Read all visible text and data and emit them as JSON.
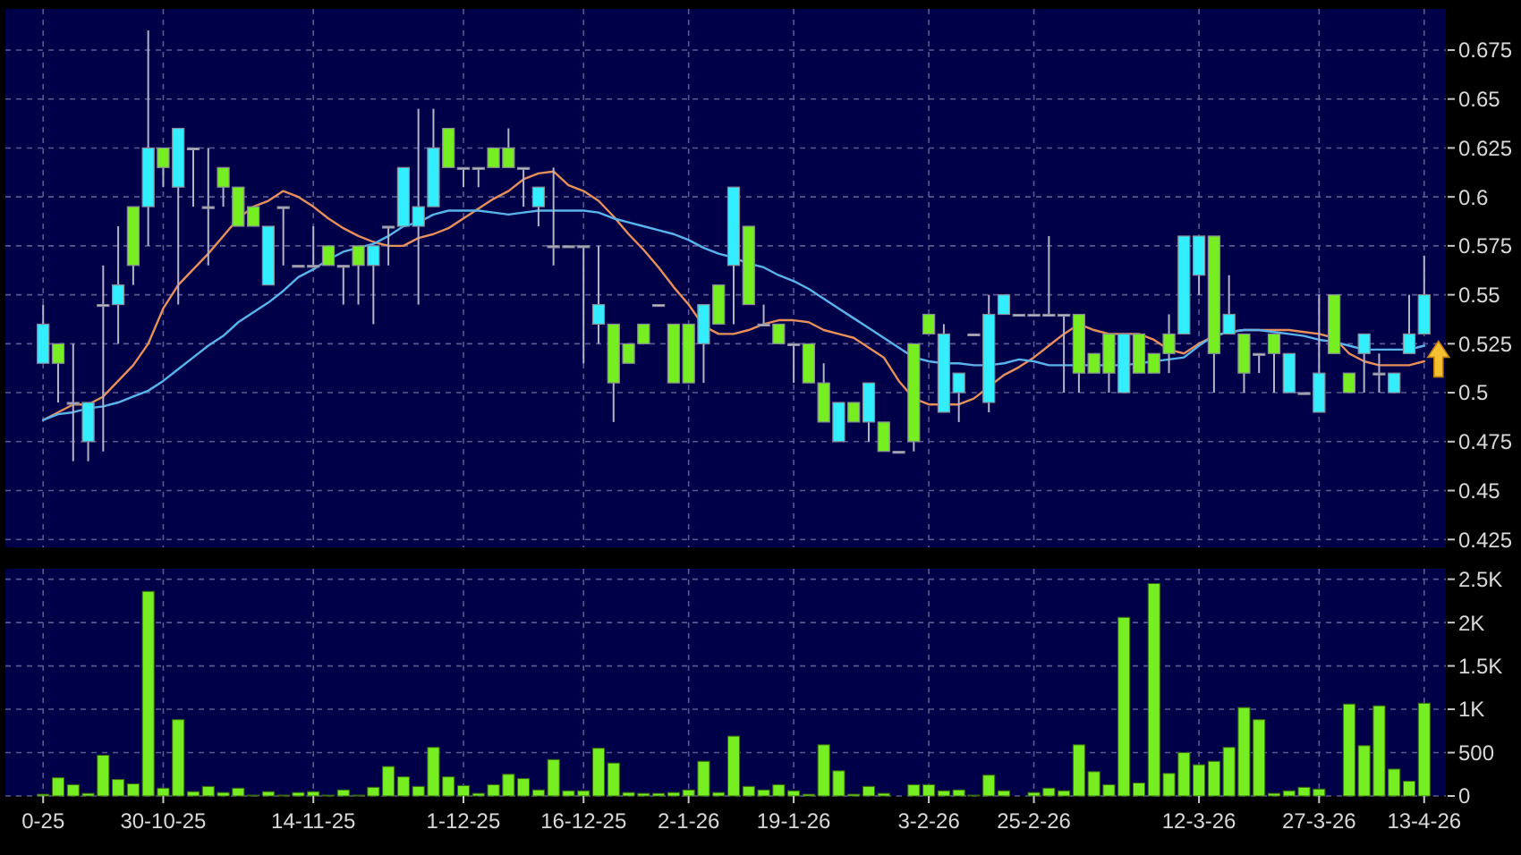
{
  "chart_data": [
    {
      "type": "candlestick",
      "tick_labels": "y",
      "grid": true,
      "ylim": [
        0.421,
        0.696
      ],
      "yticks": [
        0.425,
        0.45,
        0.475,
        0.5,
        0.525,
        0.55,
        0.575,
        0.6,
        0.625,
        0.65,
        0.675
      ],
      "categories": [
        null,
        null,
        null,
        null,
        null,
        null,
        null,
        null,
        null,
        null,
        null,
        null,
        null,
        null,
        null,
        null,
        null,
        null,
        null,
        null,
        null,
        null,
        null,
        null,
        null,
        null,
        null,
        null,
        null,
        null,
        null,
        null,
        null,
        null,
        null,
        null,
        null,
        null,
        null,
        null,
        null,
        null,
        null,
        null,
        null,
        null,
        null,
        null,
        null,
        null,
        null,
        null,
        null,
        null,
        null,
        null,
        null,
        null,
        null,
        null,
        null,
        null,
        null,
        null,
        null,
        null,
        null,
        null,
        null,
        null,
        null,
        null,
        null,
        null,
        null,
        null,
        null,
        null,
        null,
        null,
        null,
        null,
        null,
        null,
        null,
        null,
        null,
        null,
        null,
        null,
        null,
        null,
        null
      ],
      "ohlc": [
        [
          0.515,
          0.545,
          0.515,
          0.535
        ],
        [
          0.525,
          0.525,
          0.495,
          0.515
        ],
        [
          0.495,
          0.525,
          0.465,
          0.495
        ],
        [
          0.475,
          0.495,
          0.465,
          0.495
        ],
        [
          0.545,
          0.565,
          0.47,
          0.545
        ],
        [
          0.545,
          0.585,
          0.525,
          0.555
        ],
        [
          0.595,
          0.595,
          0.555,
          0.565
        ],
        [
          0.595,
          0.685,
          0.575,
          0.625
        ],
        [
          0.625,
          0.625,
          0.605,
          0.615
        ],
        [
          0.605,
          0.635,
          0.545,
          0.635
        ],
        [
          0.625,
          0.625,
          0.595,
          0.625
        ],
        [
          0.595,
          0.625,
          0.565,
          0.595
        ],
        [
          0.615,
          0.615,
          0.595,
          0.605
        ],
        [
          0.605,
          0.605,
          0.585,
          0.585
        ],
        [
          0.595,
          0.595,
          0.585,
          0.585
        ],
        [
          0.555,
          0.585,
          0.555,
          0.585
        ],
        [
          0.595,
          0.595,
          0.565,
          0.595
        ],
        [
          0.565,
          0.565,
          0.565,
          0.565
        ],
        [
          0.565,
          0.585,
          0.565,
          0.565
        ],
        [
          0.575,
          0.575,
          0.565,
          0.565
        ],
        [
          0.565,
          0.565,
          0.545,
          0.565
        ],
        [
          0.575,
          0.575,
          0.545,
          0.565
        ],
        [
          0.565,
          0.575,
          0.535,
          0.575
        ],
        [
          0.585,
          0.585,
          0.565,
          0.585
        ],
        [
          0.585,
          0.615,
          0.585,
          0.615
        ],
        [
          0.585,
          0.645,
          0.545,
          0.595
        ],
        [
          0.595,
          0.645,
          0.595,
          0.625
        ],
        [
          0.635,
          0.635,
          0.615,
          0.615
        ],
        [
          0.615,
          0.615,
          0.605,
          0.615
        ],
        [
          0.615,
          0.615,
          0.605,
          0.615
        ],
        [
          0.625,
          0.625,
          0.615,
          0.615
        ],
        [
          0.625,
          0.635,
          0.615,
          0.615
        ],
        [
          0.615,
          0.615,
          0.595,
          0.615
        ],
        [
          0.595,
          0.605,
          0.585,
          0.605
        ],
        [
          0.575,
          0.615,
          0.565,
          0.575
        ],
        [
          0.575,
          0.575,
          0.575,
          0.575
        ],
        [
          0.575,
          0.575,
          0.515,
          0.575
        ],
        [
          0.535,
          0.575,
          0.525,
          0.545
        ],
        [
          0.535,
          0.535,
          0.485,
          0.505
        ],
        [
          0.525,
          0.525,
          0.515,
          0.515
        ],
        [
          0.535,
          0.535,
          0.525,
          0.525
        ],
        [
          0.545,
          0.545,
          0.545,
          0.545
        ],
        [
          0.535,
          0.535,
          0.505,
          0.505
        ],
        [
          0.535,
          0.535,
          0.505,
          0.505
        ],
        [
          0.525,
          0.545,
          0.505,
          0.545
        ],
        [
          0.555,
          0.555,
          0.535,
          0.535
        ],
        [
          0.565,
          0.605,
          0.535,
          0.605
        ],
        [
          0.585,
          0.585,
          0.545,
          0.545
        ],
        [
          0.535,
          0.545,
          0.535,
          0.535
        ],
        [
          0.535,
          0.535,
          0.525,
          0.525
        ],
        [
          0.525,
          0.525,
          0.505,
          0.525
        ],
        [
          0.525,
          0.525,
          0.505,
          0.505
        ],
        [
          0.505,
          0.515,
          0.485,
          0.485
        ],
        [
          0.475,
          0.495,
          0.475,
          0.495
        ],
        [
          0.495,
          0.495,
          0.485,
          0.485
        ],
        [
          0.485,
          0.505,
          0.475,
          0.505
        ],
        [
          0.485,
          0.485,
          0.47,
          0.47
        ],
        [
          0.47,
          0.47,
          0.47,
          0.47
        ],
        [
          0.525,
          0.525,
          0.47,
          0.475
        ],
        [
          0.54,
          0.54,
          0.53,
          0.53
        ],
        [
          0.49,
          0.535,
          0.49,
          0.53
        ],
        [
          0.5,
          0.51,
          0.485,
          0.51
        ],
        [
          0.53,
          0.53,
          0.53,
          0.53
        ],
        [
          0.495,
          0.55,
          0.49,
          0.54
        ],
        [
          0.54,
          0.55,
          0.54,
          0.55
        ],
        [
          0.54,
          0.54,
          0.54,
          0.54
        ],
        [
          0.54,
          0.54,
          0.54,
          0.54
        ],
        [
          0.54,
          0.58,
          0.54,
          0.54
        ],
        [
          0.54,
          0.54,
          0.5,
          0.54
        ],
        [
          0.54,
          0.54,
          0.5,
          0.51
        ],
        [
          0.52,
          0.52,
          0.51,
          0.51
        ],
        [
          0.53,
          0.53,
          0.5,
          0.51
        ],
        [
          0.5,
          0.53,
          0.5,
          0.53
        ],
        [
          0.53,
          0.53,
          0.51,
          0.51
        ],
        [
          0.52,
          0.52,
          0.51,
          0.51
        ],
        [
          0.53,
          0.54,
          0.51,
          0.52
        ],
        [
          0.53,
          0.58,
          0.53,
          0.58
        ],
        [
          0.56,
          0.58,
          0.55,
          0.58
        ],
        [
          0.58,
          0.58,
          0.5,
          0.52
        ],
        [
          0.53,
          0.56,
          0.53,
          0.54
        ],
        [
          0.53,
          0.53,
          0.5,
          0.51
        ],
        [
          0.52,
          0.52,
          0.51,
          0.52
        ],
        [
          0.53,
          0.53,
          0.5,
          0.52
        ],
        [
          0.5,
          0.52,
          0.5,
          0.52
        ],
        [
          0.5,
          0.5,
          0.5,
          0.5
        ],
        [
          0.49,
          0.55,
          0.49,
          0.51
        ],
        [
          0.55,
          0.55,
          0.52,
          0.52
        ],
        [
          0.51,
          0.51,
          0.5,
          0.5
        ],
        [
          0.52,
          0.53,
          0.5,
          0.53
        ],
        [
          0.51,
          0.52,
          0.5,
          0.51
        ],
        [
          0.5,
          0.51,
          0.5,
          0.51
        ],
        [
          0.52,
          0.55,
          0.52,
          0.53
        ],
        [
          0.53,
          0.57,
          0.53,
          0.55
        ]
      ],
      "colors": [
        "#33eeff",
        "#77ee22",
        "#c8c8d8",
        "#33eeff",
        "#c8c8d8",
        "#33eeff",
        "#77ee22",
        "#33eeff",
        "#77ee22",
        "#33eeff",
        "#c8c8d8",
        "#c8c8d8",
        "#77ee22",
        "#77ee22",
        "#77ee22",
        "#33eeff",
        "#c8c8d8",
        "#c8c8d8",
        "#c8c8d8",
        "#77ee22",
        "#c8c8d8",
        "#77ee22",
        "#33eeff",
        "#c8c8d8",
        "#33eeff",
        "#33eeff",
        "#33eeff",
        "#77ee22",
        "#c8c8d8",
        "#c8c8d8",
        "#77ee22",
        "#77ee22",
        "#c8c8d8",
        "#33eeff",
        "#c8c8d8",
        "#c8c8d8",
        "#c8c8d8",
        "#33eeff",
        "#77ee22",
        "#77ee22",
        "#77ee22",
        "#c8c8d8",
        "#77ee22",
        "#77ee22",
        "#33eeff",
        "#77ee22",
        "#33eeff",
        "#77ee22",
        "#c8c8d8",
        "#77ee22",
        "#c8c8d8",
        "#77ee22",
        "#77ee22",
        "#33eeff",
        "#77ee22",
        "#33eeff",
        "#77ee22",
        "#c8c8d8",
        "#77ee22",
        "#77ee22",
        "#33eeff",
        "#33eeff",
        "#c8c8d8",
        "#33eeff",
        "#33eeff",
        "#c8c8d8",
        "#c8c8d8",
        "#c8c8d8",
        "#c8c8d8",
        "#77ee22",
        "#77ee22",
        "#77ee22",
        "#33eeff",
        "#77ee22",
        "#77ee22",
        "#77ee22",
        "#33eeff",
        "#33eeff",
        "#77ee22",
        "#33eeff",
        "#77ee22",
        "#c8c8d8",
        "#77ee22",
        "#33eeff",
        "#c8c8d8",
        "#33eeff",
        "#77ee22",
        "#77ee22",
        "#33eeff",
        "#c8c8d8",
        "#33eeff",
        "#33eeff",
        "#33eeff"
      ],
      "series": [
        {
          "type": "line",
          "color": "#e8905a",
          "values": [
            0.486,
            0.49,
            0.494,
            0.494,
            0.498,
            0.506,
            0.514,
            0.525,
            0.543,
            0.555,
            0.563,
            0.571,
            0.58,
            0.589,
            0.595,
            0.598,
            0.603,
            0.6,
            0.595,
            0.589,
            0.584,
            0.58,
            0.577,
            0.575,
            0.575,
            0.579,
            0.581,
            0.584,
            0.589,
            0.594,
            0.599,
            0.603,
            0.609,
            0.612,
            0.613,
            0.606,
            0.603,
            0.598,
            0.59,
            0.581,
            0.573,
            0.564,
            0.554,
            0.545,
            0.534,
            0.53,
            0.53,
            0.532,
            0.535,
            0.537,
            0.537,
            0.536,
            0.532,
            0.53,
            0.528,
            0.523,
            0.518,
            0.506,
            0.497,
            0.494,
            0.494,
            0.494,
            0.497,
            0.503,
            0.509,
            0.513,
            0.518,
            0.524,
            0.53,
            0.535,
            0.532,
            0.53,
            0.53,
            0.53,
            0.527,
            0.522,
            0.52,
            0.525,
            0.529,
            0.531,
            0.532,
            0.532,
            0.532,
            0.532,
            0.531,
            0.53,
            0.528,
            0.52,
            0.516,
            0.514,
            0.514,
            0.514,
            0.516
          ]
        },
        {
          "type": "line",
          "color": "#5ab4ec",
          "values": [
            0.486,
            0.489,
            0.49,
            0.492,
            0.493,
            0.495,
            0.498,
            0.501,
            0.506,
            0.512,
            0.518,
            0.524,
            0.529,
            0.536,
            0.541,
            0.546,
            0.552,
            0.559,
            0.563,
            0.568,
            0.572,
            0.574,
            0.576,
            0.58,
            0.585,
            0.587,
            0.591,
            0.593,
            0.593,
            0.593,
            0.592,
            0.591,
            0.592,
            0.593,
            0.593,
            0.593,
            0.593,
            0.592,
            0.589,
            0.587,
            0.585,
            0.583,
            0.581,
            0.578,
            0.574,
            0.571,
            0.569,
            0.566,
            0.564,
            0.56,
            0.557,
            0.553,
            0.548,
            0.543,
            0.538,
            0.533,
            0.528,
            0.523,
            0.518,
            0.516,
            0.515,
            0.515,
            0.514,
            0.514,
            0.515,
            0.517,
            0.516,
            0.514,
            0.514,
            0.514,
            0.514,
            0.514,
            0.514,
            0.515,
            0.516,
            0.517,
            0.518,
            0.524,
            0.529,
            0.531,
            0.532,
            0.532,
            0.531,
            0.53,
            0.529,
            0.527,
            0.526,
            0.524,
            0.522,
            0.522,
            0.522,
            0.522,
            0.524
          ]
        }
      ]
    },
    {
      "type": "bar",
      "grid": true,
      "color": "#77ee22",
      "ylim": [
        0,
        2620
      ],
      "yticks": [
        0,
        500,
        {
          "value": 1000,
          "label": "1K"
        },
        {
          "value": 1500,
          "label": "1.5K"
        },
        {
          "value": 2000,
          "label": "2K"
        },
        {
          "value": 2500,
          "label": "2.5K"
        }
      ],
      "categories": [
        "0-25",
        null,
        null,
        null,
        null,
        null,
        null,
        null,
        "30-10-25",
        null,
        null,
        null,
        null,
        null,
        null,
        null,
        null,
        null,
        "14-11-25",
        null,
        null,
        null,
        null,
        null,
        null,
        null,
        null,
        null,
        "1-12-25",
        null,
        null,
        null,
        null,
        null,
        null,
        null,
        "16-12-25",
        null,
        null,
        null,
        null,
        null,
        null,
        "2-1-26",
        null,
        null,
        null,
        null,
        null,
        null,
        "19-1-26",
        null,
        null,
        null,
        null,
        null,
        null,
        null,
        null,
        "3-2-26",
        null,
        null,
        null,
        null,
        null,
        null,
        "25-2-26",
        null,
        null,
        null,
        null,
        null,
        null,
        null,
        null,
        null,
        null,
        "12-3-26",
        null,
        null,
        null,
        null,
        null,
        null,
        null,
        "27-3-26",
        null,
        null,
        null,
        null,
        null,
        null,
        "13-4-26"
      ],
      "values": [
        20,
        210,
        130,
        30,
        470,
        190,
        140,
        2360,
        90,
        880,
        50,
        110,
        40,
        90,
        10,
        50,
        10,
        40,
        50,
        10,
        70,
        10,
        100,
        340,
        220,
        110,
        560,
        220,
        120,
        30,
        130,
        250,
        200,
        70,
        420,
        60,
        60,
        550,
        380,
        40,
        30,
        30,
        40,
        70,
        400,
        40,
        690,
        110,
        70,
        130,
        60,
        20,
        590,
        290,
        20,
        110,
        30,
        0,
        130,
        130,
        60,
        70,
        10,
        240,
        60,
        0,
        40,
        90,
        60,
        590,
        280,
        130,
        2060,
        150,
        2450,
        260,
        500,
        360,
        400,
        560,
        1020,
        880,
        30,
        60,
        100,
        80,
        0,
        1060,
        580,
        1040,
        310,
        170,
        1070
      ]
    }
  ]
}
